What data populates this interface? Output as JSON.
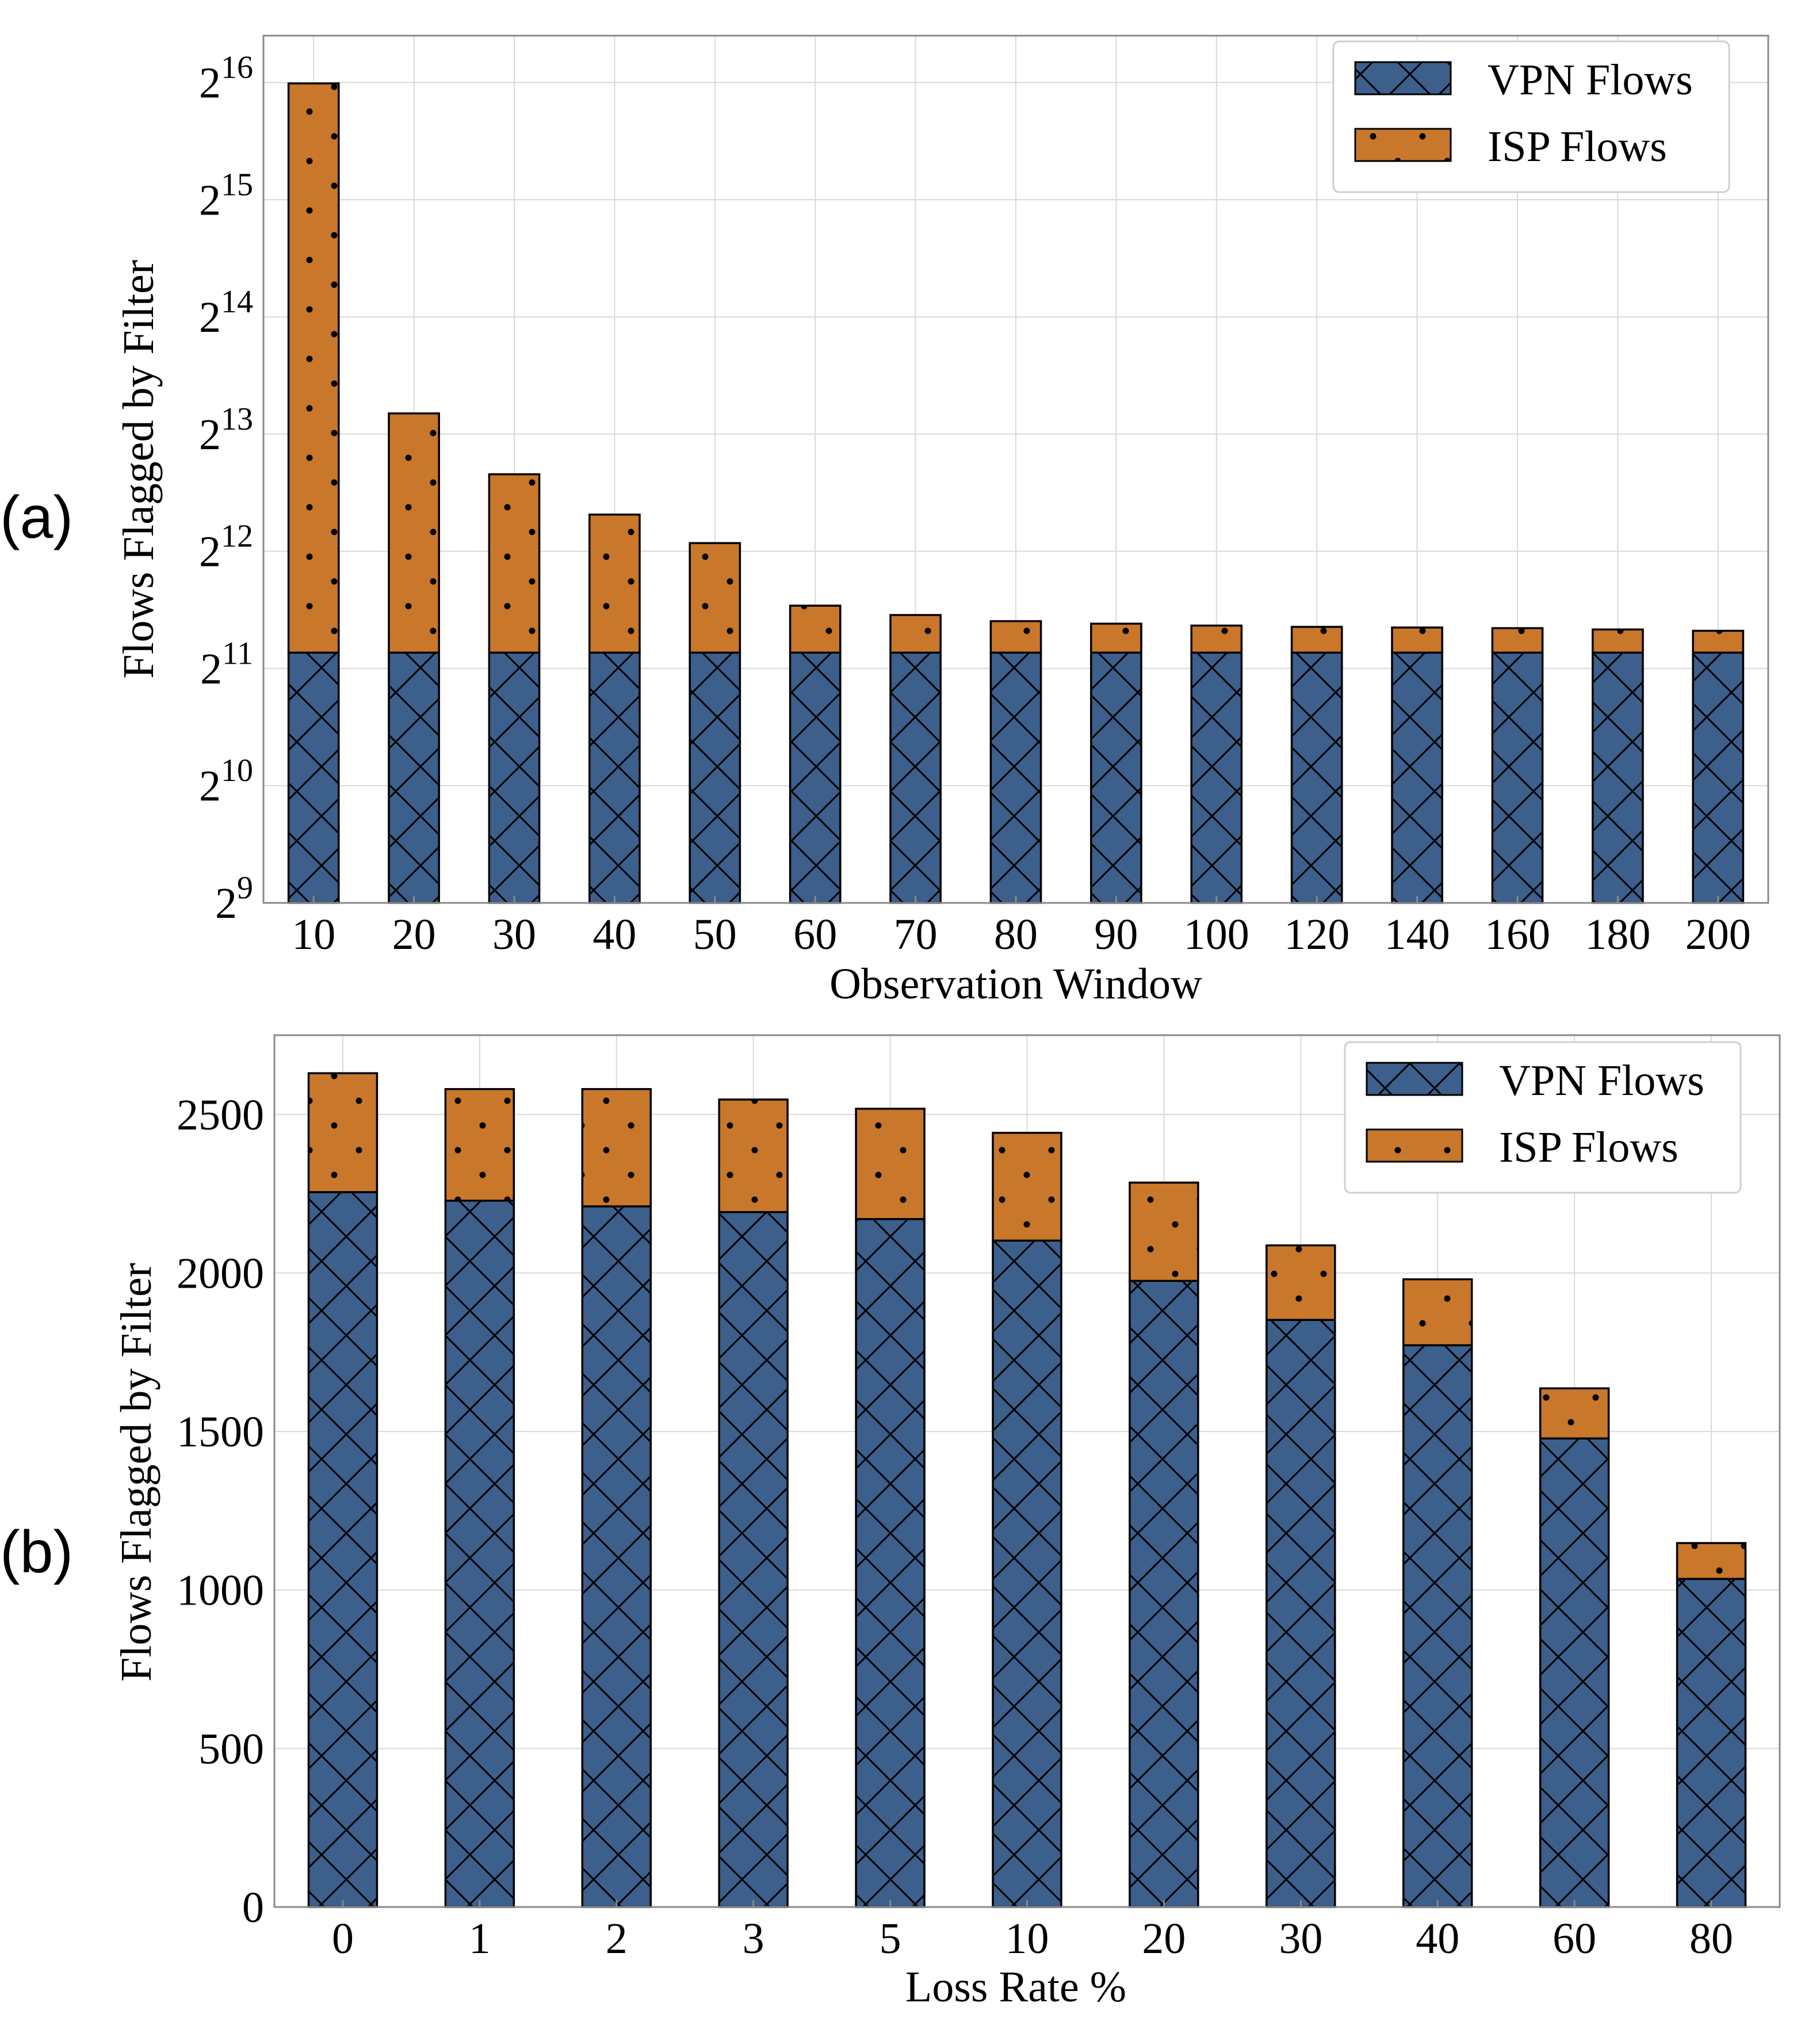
{
  "panels": {
    "a": {
      "label": "(a)"
    },
    "b": {
      "label": "(b)"
    }
  },
  "colors": {
    "vpn": "#3c5f8c",
    "isp": "#c9772a",
    "grid": "#d9d9d9",
    "frame": "#8a8a8a"
  },
  "chart_data": [
    {
      "type": "bar",
      "stacked": true,
      "yscale": "log2",
      "title": "",
      "panel_label": "(a)",
      "xlabel": "Observation Window",
      "ylabel": "Flows Flagged by Filter",
      "categories": [
        "10",
        "20",
        "30",
        "40",
        "50",
        "60",
        "70",
        "80",
        "90",
        "100",
        "120",
        "140",
        "160",
        "180",
        "200"
      ],
      "series": [
        {
          "name": "VPN Flows",
          "color": "#3c5f8c",
          "hatch": "cross",
          "values": [
            2250,
            2250,
            2250,
            2250,
            2250,
            2250,
            2250,
            2250,
            2250,
            2250,
            2250,
            2250,
            2250,
            2250,
            2250
          ]
        },
        {
          "name": "ISP Flows",
          "color": "#c9772a",
          "hatch": "dots",
          "values": [
            62950,
            7010,
            4210,
            2840,
            2050,
            720,
            560,
            460,
            420,
            390,
            370,
            360,
            350,
            330,
            310
          ]
        }
      ],
      "ylim_exponents": [
        9,
        16.4
      ],
      "yticks": [
        {
          "base": "2",
          "exp": "9"
        },
        {
          "base": "2",
          "exp": "10"
        },
        {
          "base": "2",
          "exp": "11"
        },
        {
          "base": "2",
          "exp": "12"
        },
        {
          "base": "2",
          "exp": "13"
        },
        {
          "base": "2",
          "exp": "14"
        },
        {
          "base": "2",
          "exp": "15"
        },
        {
          "base": "2",
          "exp": "16"
        }
      ],
      "legend": {
        "position": "top-right",
        "entries": [
          "VPN Flows",
          "ISP Flows"
        ]
      },
      "grid": true
    },
    {
      "type": "bar",
      "stacked": true,
      "yscale": "linear",
      "title": "",
      "panel_label": "(b)",
      "xlabel": "Loss Rate %",
      "ylabel": "Flows Flagged by Filter",
      "categories": [
        "0",
        "1",
        "2",
        "3",
        "5",
        "10",
        "20",
        "30",
        "40",
        "60",
        "80"
      ],
      "series": [
        {
          "name": "VPN Flows",
          "color": "#3c5f8c",
          "hatch": "cross",
          "values": [
            2255,
            2228,
            2210,
            2192,
            2170,
            2102,
            1975,
            1852,
            1772,
            1478,
            1035
          ]
        },
        {
          "name": "ISP Flows",
          "color": "#c9772a",
          "hatch": "dots",
          "values": [
            375,
            352,
            370,
            355,
            348,
            340,
            310,
            235,
            208,
            158,
            113
          ]
        }
      ],
      "ylim": [
        0,
        2750
      ],
      "yticks": [
        "0",
        "500",
        "1000",
        "1500",
        "2000",
        "2500"
      ],
      "legend": {
        "position": "top-right",
        "entries": [
          "VPN Flows",
          "ISP Flows"
        ]
      },
      "grid": true
    }
  ]
}
